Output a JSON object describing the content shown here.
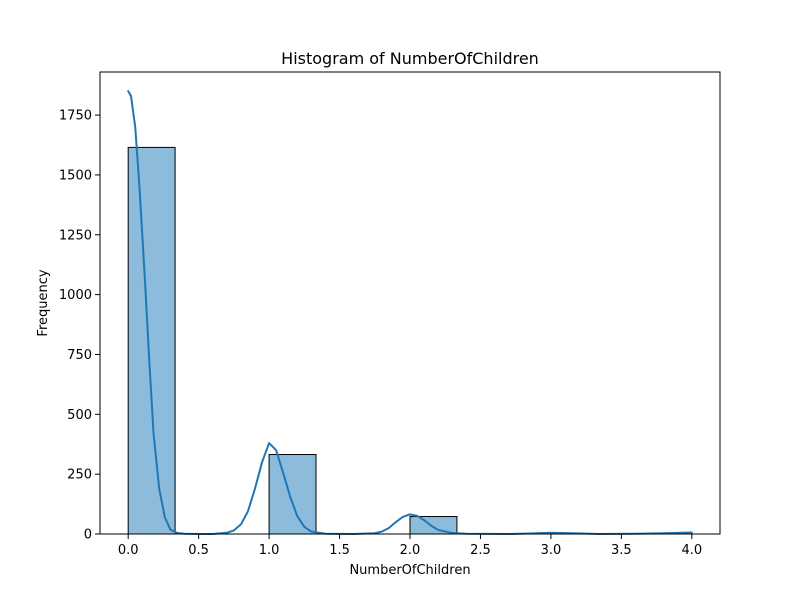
{
  "chart_data": {
    "type": "bar",
    "title": "Histogram of NumberOfChildren",
    "xlabel": "NumberOfChildren",
    "ylabel": "Frequency",
    "xlim": [
      -0.2,
      4.2
    ],
    "ylim": [
      0,
      1930
    ],
    "xticks": [
      0.0,
      0.5,
      1.0,
      1.5,
      2.0,
      2.5,
      3.0,
      3.5,
      4.0
    ],
    "xtick_labels": [
      "0.0",
      "0.5",
      "1.0",
      "1.5",
      "2.0",
      "2.5",
      "3.0",
      "3.5",
      "4.0"
    ],
    "yticks": [
      0,
      250,
      500,
      750,
      1000,
      1250,
      1500,
      1750
    ],
    "ytick_labels": [
      "0",
      "250",
      "500",
      "750",
      "1000",
      "1250",
      "1500",
      "1750"
    ],
    "grid": false,
    "bins": [
      {
        "x0": 0.0,
        "x1": 0.333,
        "count": 1615
      },
      {
        "x0": 0.333,
        "x1": 0.667,
        "count": 0
      },
      {
        "x0": 0.667,
        "x1": 1.0,
        "count": 0
      },
      {
        "x0": 1.0,
        "x1": 1.333,
        "count": 332
      },
      {
        "x0": 1.333,
        "x1": 1.667,
        "count": 0
      },
      {
        "x0": 1.667,
        "x1": 2.0,
        "count": 0
      },
      {
        "x0": 2.0,
        "x1": 2.333,
        "count": 73
      },
      {
        "x0": 2.333,
        "x1": 2.667,
        "count": 0
      },
      {
        "x0": 2.667,
        "x1": 3.0,
        "count": 0
      },
      {
        "x0": 3.0,
        "x1": 3.333,
        "count": 2
      },
      {
        "x0": 3.333,
        "x1": 3.667,
        "count": 0
      },
      {
        "x0": 3.667,
        "x1": 4.0,
        "count": 2
      }
    ],
    "kde": [
      [
        0.0,
        1850
      ],
      [
        0.02,
        1830
      ],
      [
        0.05,
        1700
      ],
      [
        0.08,
        1450
      ],
      [
        0.12,
        1050
      ],
      [
        0.15,
        720
      ],
      [
        0.18,
        420
      ],
      [
        0.22,
        190
      ],
      [
        0.26,
        70
      ],
      [
        0.3,
        18
      ],
      [
        0.35,
        4
      ],
      [
        0.4,
        1
      ],
      [
        0.5,
        0
      ],
      [
        0.6,
        0
      ],
      [
        0.7,
        5
      ],
      [
        0.75,
        15
      ],
      [
        0.8,
        40
      ],
      [
        0.85,
        95
      ],
      [
        0.9,
        190
      ],
      [
        0.95,
        300
      ],
      [
        1.0,
        380
      ],
      [
        1.05,
        350
      ],
      [
        1.1,
        255
      ],
      [
        1.15,
        155
      ],
      [
        1.2,
        75
      ],
      [
        1.25,
        30
      ],
      [
        1.3,
        10
      ],
      [
        1.4,
        1
      ],
      [
        1.6,
        0
      ],
      [
        1.75,
        3
      ],
      [
        1.8,
        10
      ],
      [
        1.85,
        25
      ],
      [
        1.9,
        50
      ],
      [
        1.95,
        72
      ],
      [
        2.0,
        82
      ],
      [
        2.05,
        76
      ],
      [
        2.1,
        58
      ],
      [
        2.15,
        35
      ],
      [
        2.2,
        17
      ],
      [
        2.3,
        4
      ],
      [
        2.4,
        1
      ],
      [
        2.7,
        0
      ],
      [
        2.85,
        2
      ],
      [
        3.0,
        5
      ],
      [
        3.15,
        3
      ],
      [
        3.35,
        0
      ],
      [
        3.6,
        1
      ],
      [
        3.8,
        3
      ],
      [
        4.0,
        6
      ]
    ],
    "colors": {
      "bar_fill": "#8dbbdb",
      "bar_stroke": "#000000",
      "kde_line": "#1f77b4",
      "axis": "#000000"
    }
  }
}
